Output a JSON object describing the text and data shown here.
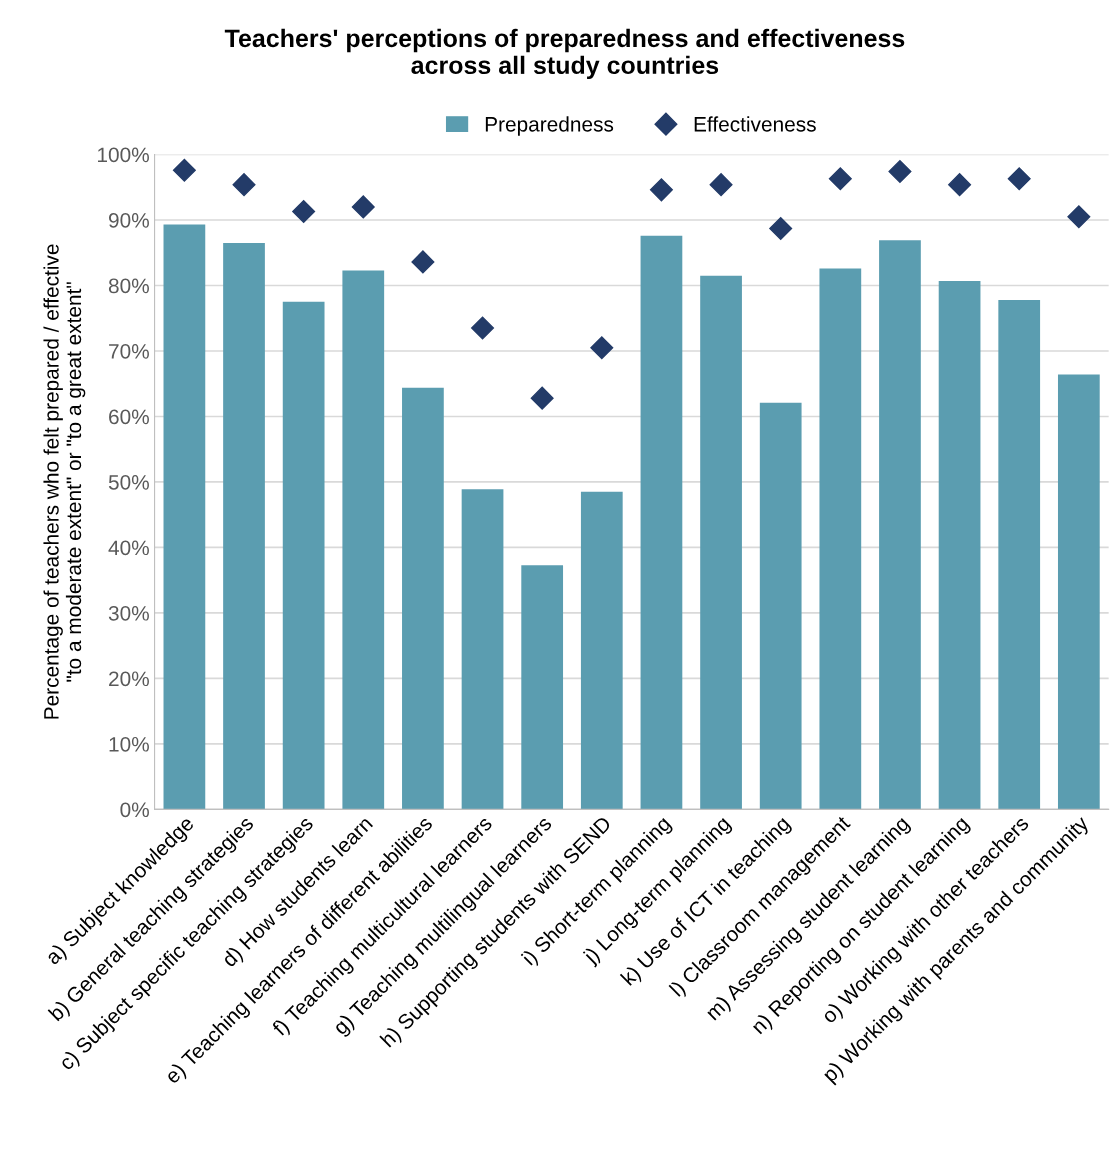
{
  "chart_data": {
    "type": "bar",
    "title": "Teachers' perceptions of preparedness and effectiveness\nacross all study countries",
    "ylabel": "Percentage of teachers who felt prepared / effective\n\"to a moderate extent\" or \"to a great extent\"",
    "categories": [
      "a) Subject knowledge",
      "b) General teaching strategies",
      "c) Subject specific teaching strategies",
      "d) How students learn",
      "e) Teaching learners of different abilities",
      "f) Teaching multicultural learners",
      "g) Teaching multilingual learners",
      "h) Supporting students with SEND",
      "i) Short-term planning",
      "j) Long-term planning",
      "k) Use of ICT in teaching",
      "l) Classroom management",
      "m) Assessing student learning",
      "n) Reporting on student learning",
      "o) Working with other teachers",
      "p) Working with parents and community"
    ],
    "series": [
      {
        "name": "Preparedness",
        "color": "#5b9db0",
        "values": [
          89.3,
          86.5,
          77.5,
          82.3,
          64.4,
          48.9,
          37.3,
          48.5,
          87.6,
          81.5,
          62.1,
          82.6,
          86.9,
          80.7,
          77.8,
          66.4
        ]
      },
      {
        "name": "Effectiveness",
        "type": "scatter",
        "marker": "diamond",
        "color": "#233b68",
        "values": [
          97.6,
          95.4,
          91.3,
          92.0,
          83.6,
          73.5,
          62.8,
          70.5,
          94.6,
          95.4,
          88.7,
          96.3,
          97.4,
          95.4,
          96.3,
          90.5
        ]
      }
    ],
    "ylim": [
      0,
      100
    ],
    "yticks": [
      {
        "value": 0,
        "label": "0%"
      },
      {
        "value": 10,
        "label": "10%"
      },
      {
        "value": 20,
        "label": "20%"
      },
      {
        "value": 30,
        "label": "30%"
      },
      {
        "value": 40,
        "label": "40%"
      },
      {
        "value": 50,
        "label": "50%"
      },
      {
        "value": 60,
        "label": "60%"
      },
      {
        "value": 70,
        "label": "70%"
      },
      {
        "value": 80,
        "label": "80%"
      },
      {
        "value": 90,
        "label": "90%"
      },
      {
        "value": 100,
        "label": "100%"
      }
    ],
    "grid": "y",
    "legend": "top"
  }
}
